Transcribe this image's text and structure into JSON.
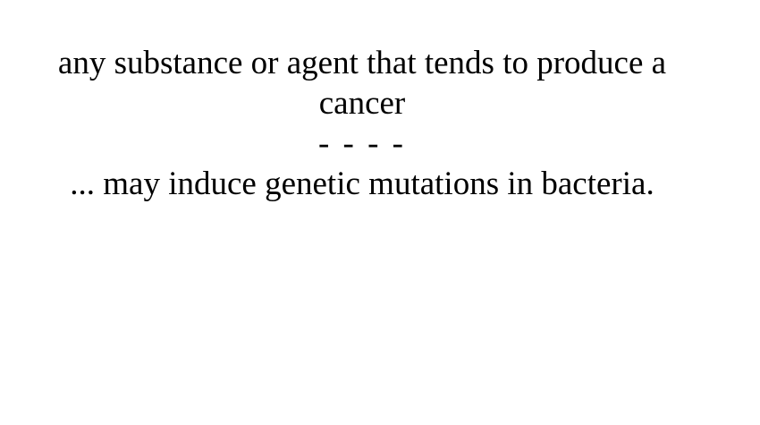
{
  "card": {
    "definition": "any substance or agent that tends to produce a cancer",
    "separator": "- - - -",
    "example": "... may induce genetic mutations in bacteria."
  }
}
